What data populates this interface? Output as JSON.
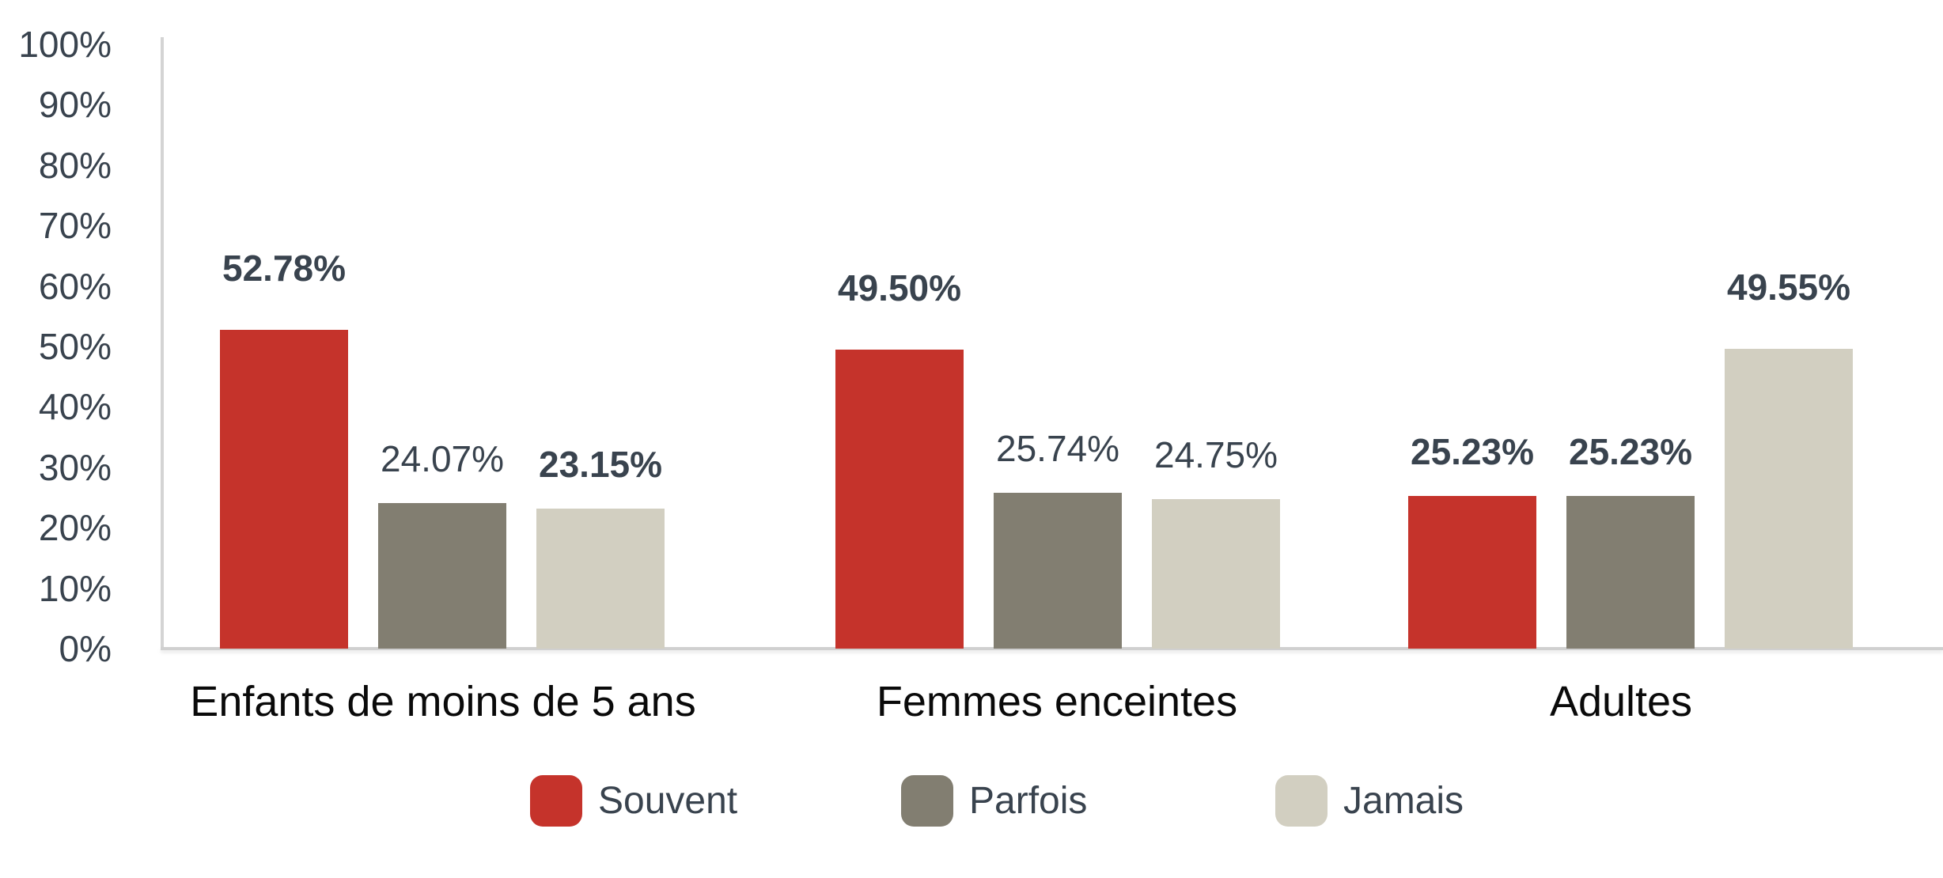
{
  "chart_data": {
    "type": "bar",
    "title": "",
    "categories": [
      "Enfants de moins de 5 ans",
      "Femmes enceintes",
      "Adultes"
    ],
    "series": [
      {
        "name": "Souvent",
        "color": "#c5332b",
        "values": [
          52.78,
          49.5,
          25.23
        ],
        "labels": [
          "52.78%",
          "49.50%",
          "25.23%"
        ],
        "label_bold": [
          true,
          true,
          true
        ]
      },
      {
        "name": "Parfois",
        "color": "#827e71",
        "values": [
          24.07,
          25.74,
          25.23
        ],
        "labels": [
          "24.07%",
          "25.74%",
          "25.23%"
        ],
        "label_bold": [
          false,
          false,
          true
        ]
      },
      {
        "name": "Jamais",
        "color": "#d2cfc1",
        "values": [
          23.15,
          24.75,
          49.55
        ],
        "labels": [
          "23.15%",
          "24.75%",
          "49.55%"
        ],
        "label_bold": [
          true,
          false,
          true
        ]
      }
    ],
    "y_axis": {
      "ticks": [
        "0%",
        "10%",
        "20%",
        "30%",
        "40%",
        "50%",
        "60%",
        "70%",
        "80%",
        "90%",
        "100%"
      ],
      "min": 0,
      "max": 100,
      "grid": false
    },
    "legend": {
      "position": "bottom",
      "entries": [
        "Souvent",
        "Parfois",
        "Jamais"
      ]
    },
    "colors": {
      "value_label_text": "#39434e",
      "category_text": "#0a0a0a",
      "axis_line": "#d0d0d0"
    }
  }
}
